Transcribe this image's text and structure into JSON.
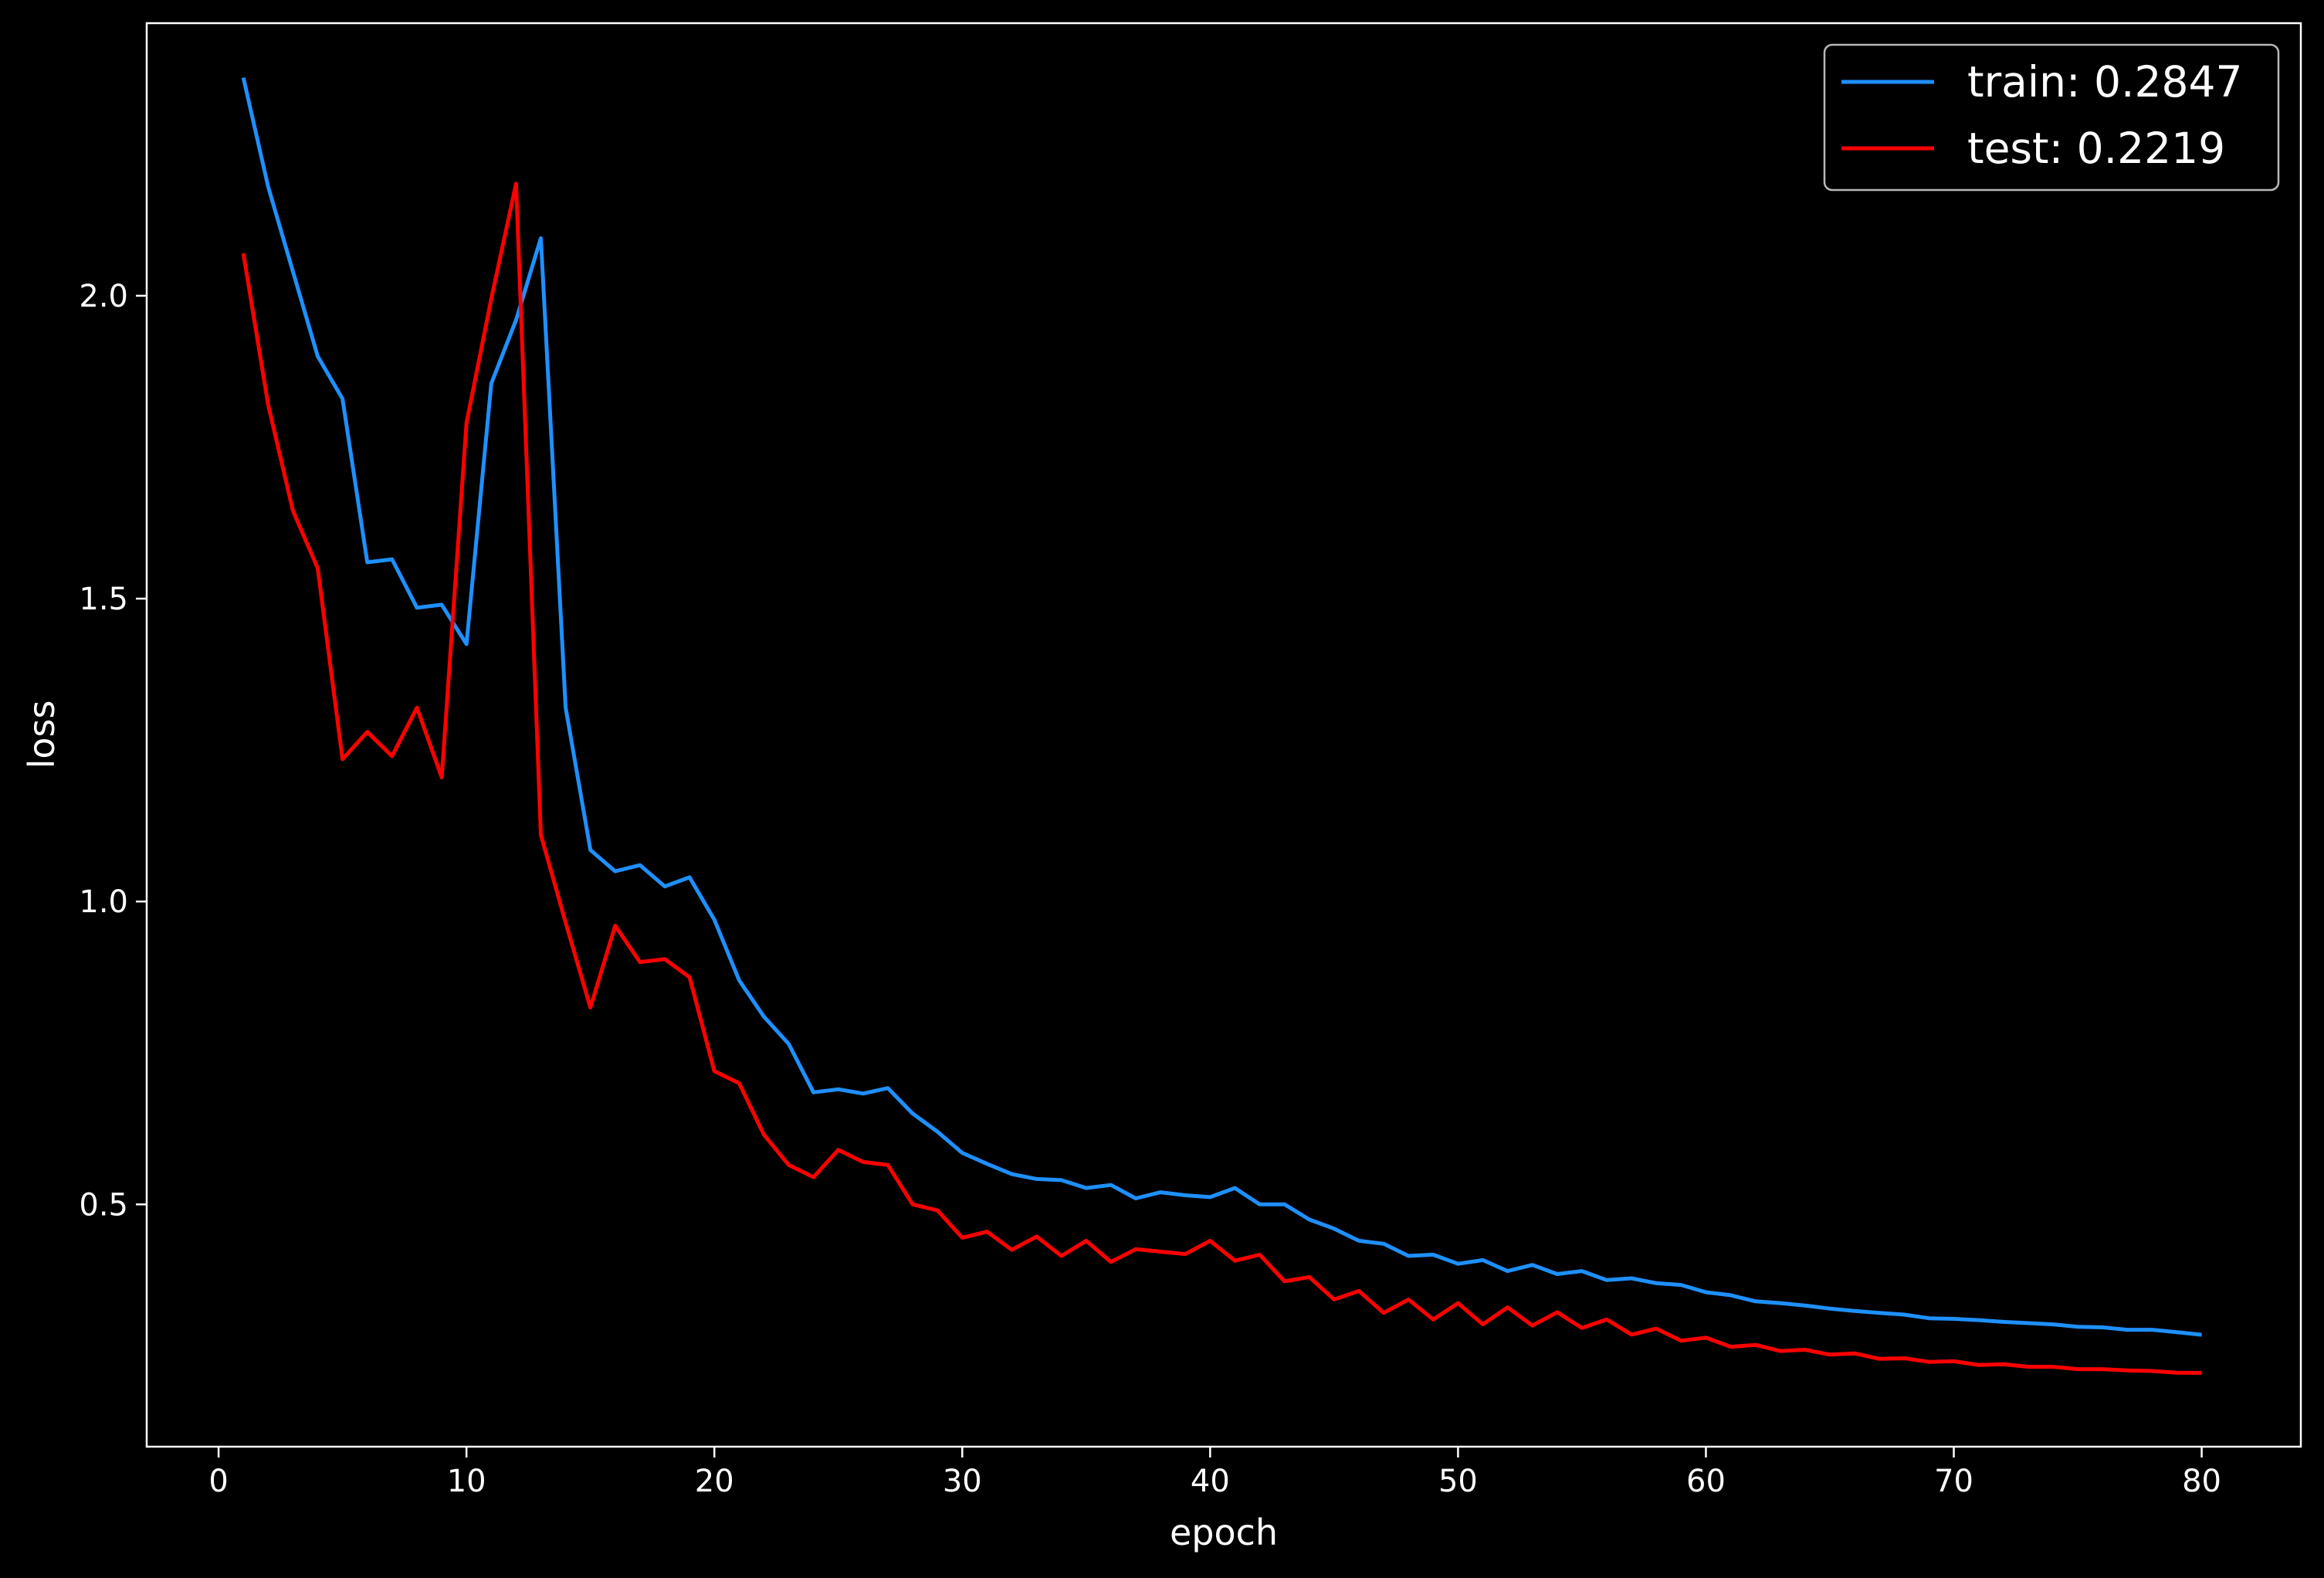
{
  "chart_data": {
    "type": "line",
    "xlabel": "epoch",
    "ylabel": "loss",
    "xlim": [
      -2.9,
      84
    ],
    "ylim": [
      0.1,
      2.45
    ],
    "xticks": [
      0,
      10,
      20,
      30,
      40,
      50,
      60,
      70,
      80
    ],
    "yticks": [
      0.5,
      1.0,
      1.5,
      2.0
    ],
    "ytick_labels": [
      "0.5",
      "1.0",
      "1.5",
      "2.0"
    ],
    "grid": false,
    "background": "#000000",
    "legend_position": "top-right",
    "x": [
      1,
      2,
      3,
      4,
      5,
      6,
      7,
      8,
      9,
      10,
      11,
      12,
      13,
      14,
      15,
      16,
      17,
      18,
      19,
      20,
      21,
      22,
      23,
      24,
      25,
      26,
      27,
      28,
      29,
      30,
      31,
      32,
      33,
      34,
      35,
      36,
      37,
      38,
      39,
      40,
      41,
      42,
      43,
      44,
      45,
      46,
      47,
      48,
      49,
      50,
      51,
      52,
      53,
      54,
      55,
      56,
      57,
      58,
      59,
      60,
      61,
      62,
      63,
      64,
      65,
      66,
      67,
      68,
      69,
      70,
      71,
      72,
      73,
      74,
      75,
      76,
      77,
      78,
      79,
      80
    ],
    "series": [
      {
        "name": "train: 0.2847",
        "color": "#1e90ff",
        "values": [
          2.36,
          2.18,
          2.04,
          1.9,
          1.83,
          1.56,
          1.565,
          1.485,
          1.49,
          1.425,
          1.855,
          1.96,
          2.095,
          1.32,
          1.085,
          1.05,
          1.06,
          1.025,
          1.04,
          0.97,
          0.87,
          0.81,
          0.765,
          0.685,
          0.69,
          0.683,
          0.692,
          0.65,
          0.62,
          0.585,
          0.567,
          0.55,
          0.542,
          0.54,
          0.527,
          0.532,
          0.51,
          0.52,
          0.515,
          0.512,
          0.527,
          0.5,
          0.5,
          0.475,
          0.46,
          0.44,
          0.435,
          0.415,
          0.417,
          0.402,
          0.408,
          0.39,
          0.4,
          0.385,
          0.39,
          0.375,
          0.378,
          0.37,
          0.367,
          0.355,
          0.35,
          0.34,
          0.337,
          0.333,
          0.328,
          0.324,
          0.321,
          0.318,
          0.312,
          0.311,
          0.309,
          0.306,
          0.304,
          0.302,
          0.298,
          0.297,
          0.293,
          0.293,
          0.289,
          0.2847
        ]
      },
      {
        "name": "test: 0.2219",
        "color": "#ff0000",
        "values": [
          2.07,
          1.82,
          1.645,
          1.55,
          1.235,
          1.28,
          1.24,
          1.32,
          1.205,
          1.79,
          1.995,
          2.185,
          1.11,
          0.965,
          0.825,
          0.96,
          0.9,
          0.905,
          0.875,
          0.72,
          0.7,
          0.615,
          0.565,
          0.545,
          0.59,
          0.57,
          0.565,
          0.5,
          0.49,
          0.445,
          0.455,
          0.425,
          0.447,
          0.415,
          0.44,
          0.405,
          0.426,
          0.422,
          0.418,
          0.44,
          0.407,
          0.417,
          0.373,
          0.38,
          0.343,
          0.357,
          0.321,
          0.343,
          0.31,
          0.337,
          0.302,
          0.33,
          0.3,
          0.322,
          0.296,
          0.31,
          0.285,
          0.295,
          0.275,
          0.28,
          0.265,
          0.268,
          0.258,
          0.26,
          0.252,
          0.254,
          0.245,
          0.246,
          0.24,
          0.241,
          0.235,
          0.236,
          0.232,
          0.232,
          0.228,
          0.228,
          0.226,
          0.225,
          0.222,
          0.2219
        ]
      }
    ]
  }
}
